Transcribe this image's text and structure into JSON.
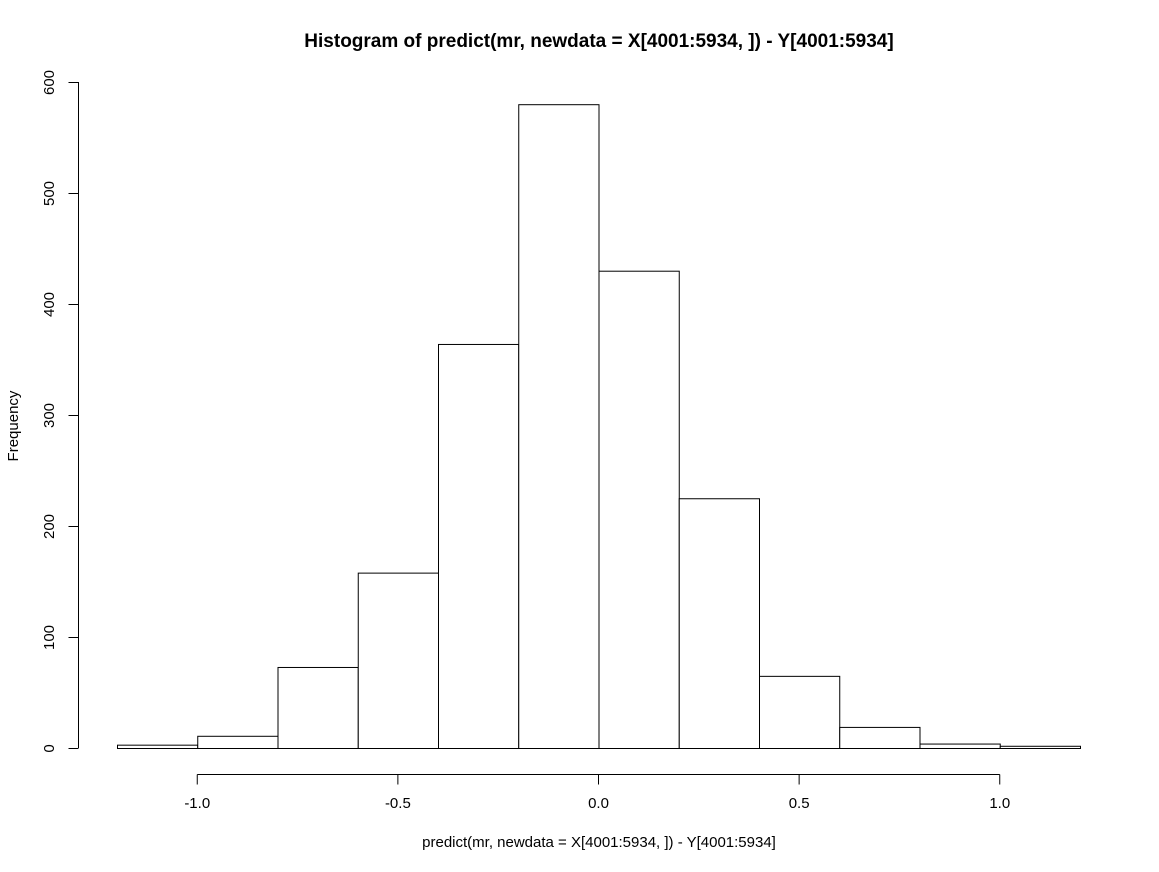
{
  "chart_data": {
    "type": "bar",
    "subtype": "histogram",
    "title": "Histogram of predict(mr, newdata = X[4001:5934, ]) - Y[4001:5934]",
    "xlabel": "predict(mr, newdata = X[4001:5934, ]) - Y[4001:5934]",
    "ylabel": "Frequency",
    "bin_edges": [
      -1.2,
      -1.0,
      -0.8,
      -0.6,
      -0.4,
      -0.2,
      0.0,
      0.2,
      0.4,
      0.6,
      0.8,
      1.0,
      1.2
    ],
    "values": [
      3,
      11,
      73,
      158,
      364,
      580,
      430,
      225,
      65,
      19,
      4,
      2
    ],
    "xlim": [
      -1.2,
      1.2
    ],
    "ylim": [
      0,
      600
    ],
    "x_ticks": [
      -1.0,
      -0.5,
      0.0,
      0.5,
      1.0
    ],
    "x_tick_labels": [
      "-1.0",
      "-0.5",
      "0.0",
      "0.5",
      "1.0"
    ],
    "y_ticks": [
      0,
      100,
      200,
      300,
      400,
      500,
      600
    ],
    "y_tick_labels": [
      "0",
      "100",
      "200",
      "300",
      "400",
      "500",
      "600"
    ],
    "grid": false,
    "legend": false,
    "colors": {
      "bar_fill": "#ffffff",
      "bar_stroke": "#000000"
    }
  }
}
